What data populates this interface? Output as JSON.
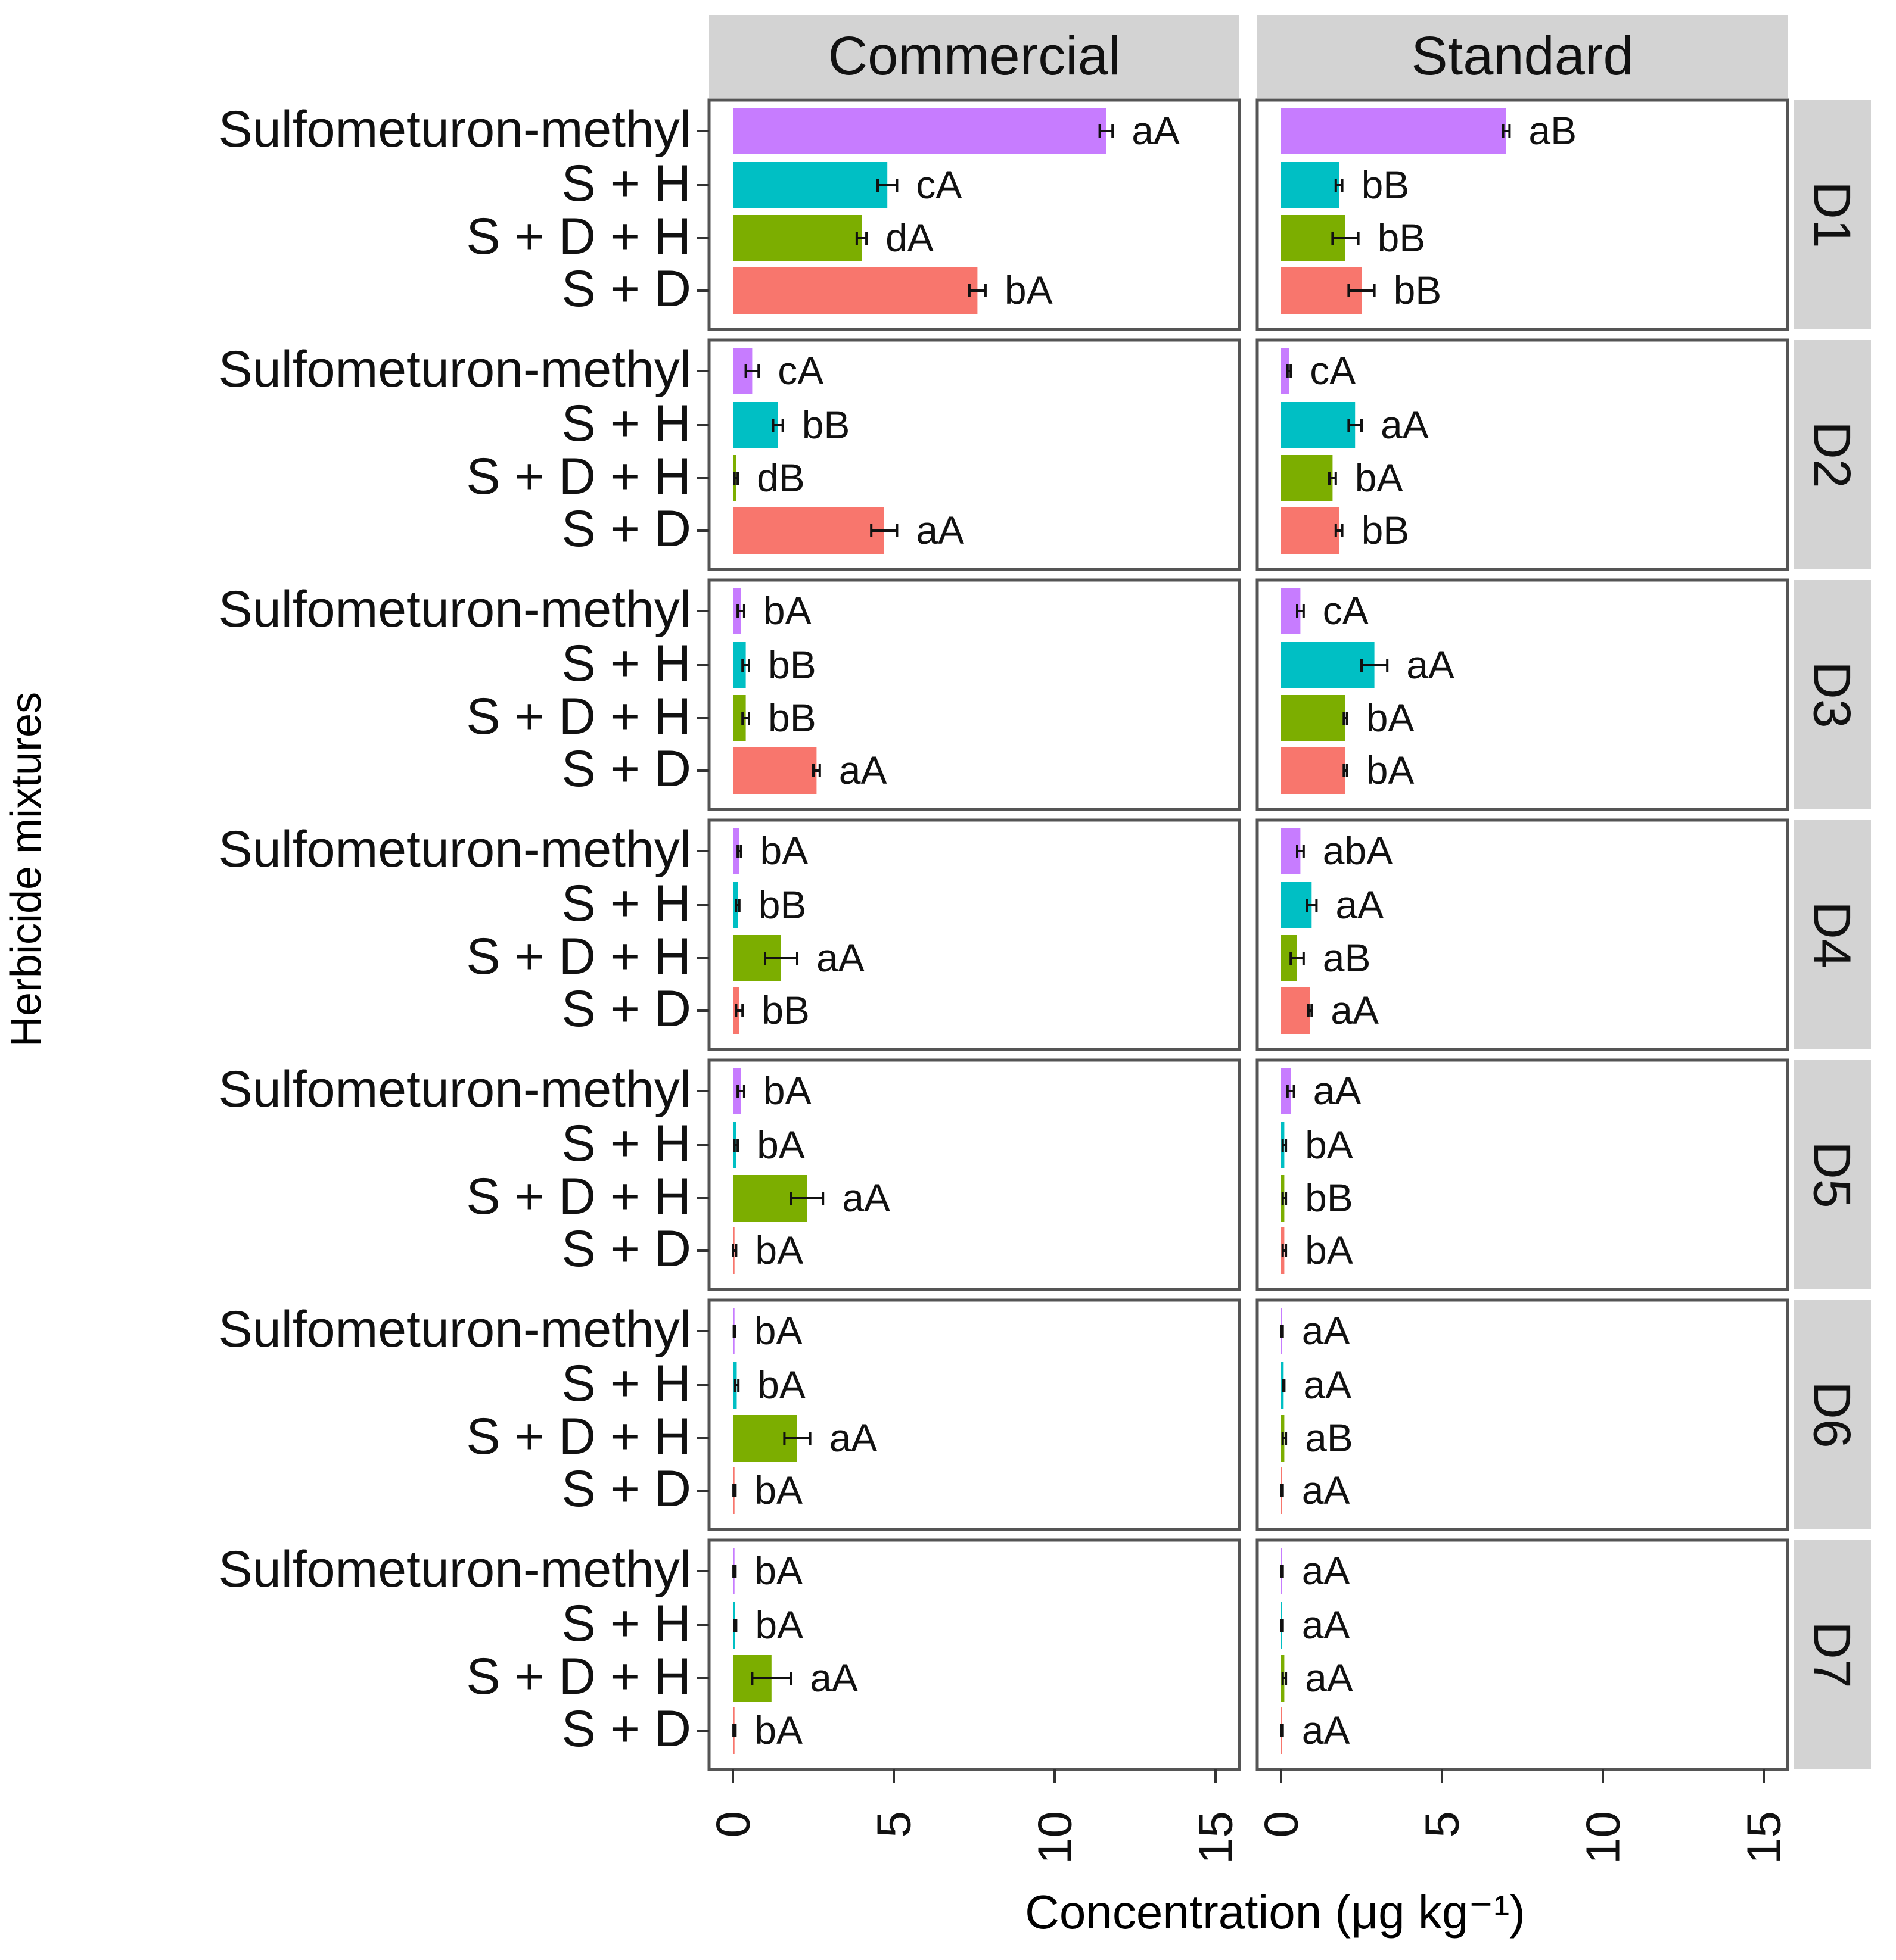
{
  "chart_data": {
    "type": "bar",
    "orientation": "horizontal",
    "xlabel": "Concentration (μg kg⁻¹)",
    "ylabel": "Herbicide mixtures",
    "xlim": [
      0,
      15
    ],
    "x_ticks": [
      0,
      5,
      10,
      15
    ],
    "x_tick_labels": [
      "0",
      "5",
      "10",
      "15"
    ],
    "columns": [
      "Commercial",
      "Standard"
    ],
    "rows": [
      "D1",
      "D2",
      "D3",
      "D4",
      "D5",
      "D6",
      "D7"
    ],
    "categories": [
      "Sulfometuron-methyl",
      "S + H",
      "S + D + H",
      "S + D"
    ],
    "series_colors": [
      "#c77cff",
      "#00bfc4",
      "#7cae00",
      "#f8766d"
    ],
    "legend": "none",
    "grid": false,
    "panels": [
      {
        "row": "D1",
        "column": "Commercial",
        "values": [
          11.6,
          4.8,
          4.0,
          7.6
        ],
        "errors": [
          0.2,
          0.3,
          0.15,
          0.25
        ],
        "labels": [
          "aA",
          "cA",
          "dA",
          "bA"
        ]
      },
      {
        "row": "D1",
        "column": "Standard",
        "values": [
          7.0,
          1.8,
          2.0,
          2.5
        ],
        "errors": [
          0.1,
          0.1,
          0.4,
          0.4
        ],
        "labels": [
          "aB",
          "bB",
          "bB",
          "bB"
        ]
      },
      {
        "row": "D2",
        "column": "Commercial",
        "values": [
          0.6,
          1.4,
          0.1,
          4.7
        ],
        "errors": [
          0.2,
          0.15,
          0.05,
          0.4
        ],
        "labels": [
          "cA",
          "bB",
          "dB",
          "aA"
        ]
      },
      {
        "row": "D2",
        "column": "Standard",
        "values": [
          0.25,
          2.3,
          1.6,
          1.8
        ],
        "errors": [
          0.05,
          0.2,
          0.1,
          0.1
        ],
        "labels": [
          "cA",
          "aA",
          "bA",
          "bB"
        ]
      },
      {
        "row": "D3",
        "column": "Commercial",
        "values": [
          0.25,
          0.4,
          0.4,
          2.6
        ],
        "errors": [
          0.1,
          0.1,
          0.1,
          0.1
        ],
        "labels": [
          "bA",
          "bB",
          "bB",
          "aA"
        ]
      },
      {
        "row": "D3",
        "column": "Standard",
        "values": [
          0.6,
          2.9,
          2.0,
          2.0
        ],
        "errors": [
          0.1,
          0.4,
          0.05,
          0.05
        ],
        "labels": [
          "cA",
          "aA",
          "bA",
          "bA"
        ]
      },
      {
        "row": "D4",
        "column": "Commercial",
        "values": [
          0.2,
          0.15,
          1.5,
          0.2
        ],
        "errors": [
          0.05,
          0.05,
          0.5,
          0.1
        ],
        "labels": [
          "bA",
          "bB",
          "aA",
          "bB"
        ]
      },
      {
        "row": "D4",
        "column": "Standard",
        "values": [
          0.6,
          0.95,
          0.5,
          0.9
        ],
        "errors": [
          0.1,
          0.15,
          0.2,
          0.05
        ],
        "labels": [
          "abA",
          "aA",
          "aB",
          "aA"
        ]
      },
      {
        "row": "D5",
        "column": "Commercial",
        "values": [
          0.25,
          0.1,
          2.3,
          0.05
        ],
        "errors": [
          0.1,
          0.05,
          0.5,
          0.05
        ],
        "labels": [
          "bA",
          "bA",
          "aA",
          "bA"
        ]
      },
      {
        "row": "D5",
        "column": "Standard",
        "values": [
          0.3,
          0.1,
          0.1,
          0.1
        ],
        "errors": [
          0.1,
          0.05,
          0.05,
          0.05
        ],
        "labels": [
          "aA",
          "bA",
          "bB",
          "bA"
        ]
      },
      {
        "row": "D6",
        "column": "Commercial",
        "values": [
          0.05,
          0.12,
          2.0,
          0.05
        ],
        "errors": [
          0.02,
          0.05,
          0.4,
          0.03
        ],
        "labels": [
          "bA",
          "bA",
          "aA",
          "bA"
        ]
      },
      {
        "row": "D6",
        "column": "Standard",
        "values": [
          0.03,
          0.08,
          0.1,
          0.03
        ],
        "errors": [
          0.02,
          0.02,
          0.05,
          0.02
        ],
        "labels": [
          "aA",
          "aA",
          "aB",
          "aA"
        ]
      },
      {
        "row": "D7",
        "column": "Commercial",
        "values": [
          0.05,
          0.07,
          1.2,
          0.05
        ],
        "errors": [
          0.03,
          0.03,
          0.6,
          0.03
        ],
        "labels": [
          "bA",
          "bA",
          "aA",
          "bA"
        ]
      },
      {
        "row": "D7",
        "column": "Standard",
        "values": [
          0.03,
          0.03,
          0.1,
          0.03
        ],
        "errors": [
          0.02,
          0.02,
          0.05,
          0.02
        ],
        "labels": [
          "aA",
          "aA",
          "aA",
          "aA"
        ]
      }
    ]
  }
}
